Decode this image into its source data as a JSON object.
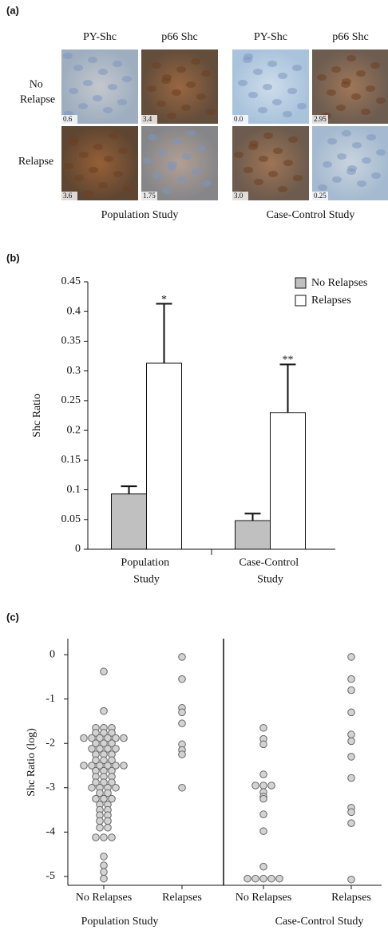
{
  "panel_a": {
    "label": "(a)",
    "row_labels": [
      "No Relapse",
      "Relapse"
    ],
    "studies": [
      {
        "name": "Population Study",
        "columns": [
          "PY-Shc",
          "p66 Shc"
        ],
        "scores": [
          [
            "0.6",
            "3.4"
          ],
          [
            "3.6",
            "1.75"
          ]
        ]
      },
      {
        "name": "Case-Control Study",
        "columns": [
          "PY-Shc",
          "p66 Shc"
        ],
        "scores": [
          [
            "0.0",
            "2.95"
          ],
          [
            "3.0",
            "0.25"
          ]
        ]
      }
    ]
  },
  "chart_data": [
    {
      "type": "bar",
      "label": "(b)",
      "y_label": "Shc Ratio",
      "categories": [
        "Population Study",
        "Case-Control Study"
      ],
      "series": [
        {
          "name": "No Relapses",
          "color": "#c0c0c0",
          "values": [
            0.093,
            0.048
          ],
          "errors": [
            0.013,
            0.012
          ]
        },
        {
          "name": "Relapses",
          "color": "#ffffff",
          "values": [
            0.313,
            0.23
          ],
          "errors": [
            0.1,
            0.081
          ],
          "annotations": [
            "*",
            "**"
          ]
        }
      ],
      "ylim": [
        0,
        0.45
      ],
      "yticks": [
        0,
        0.05,
        0.1,
        0.15,
        0.2,
        0.25,
        0.3,
        0.35,
        0.4,
        0.45
      ],
      "legend": "top-right"
    },
    {
      "type": "dot",
      "label": "(c)",
      "y_label": "Shc Ratio (log)",
      "color": "#d3d3d3",
      "groups": [
        {
          "name": "Population Study",
          "series": [
            {
              "name": "No Relapses",
              "values": [
                -0.38,
                -1.27,
                -1.65,
                -1.65,
                -1.65,
                -1.76,
                -1.76,
                -1.76,
                -1.88,
                -1.88,
                -1.88,
                -1.88,
                -1.88,
                -1.88,
                -2.0,
                -2.0,
                -2.0,
                -2.12,
                -2.12,
                -2.12,
                -2.12,
                -2.25,
                -2.25,
                -2.25,
                -2.38,
                -2.38,
                -2.38,
                -2.5,
                -2.5,
                -2.5,
                -2.5,
                -2.5,
                -2.5,
                -2.62,
                -2.62,
                -2.62,
                -2.75,
                -2.75,
                -2.75,
                -2.88,
                -2.88,
                -2.88,
                -3.0,
                -3.0,
                -3.0,
                -3.0,
                -3.12,
                -3.12,
                -3.25,
                -3.25,
                -3.25,
                -3.38,
                -3.38,
                -3.5,
                -3.5,
                -3.62,
                -3.62,
                -3.75,
                -3.75,
                -3.9,
                -3.9,
                -4.12,
                -4.12,
                -4.12,
                -4.55,
                -4.75,
                -4.9,
                -5.05
              ]
            },
            {
              "name": "Relapses",
              "values": [
                -0.05,
                -0.55,
                -1.2,
                -1.3,
                -1.55,
                -2.02,
                -2.15,
                -2.25,
                -3.0
              ]
            }
          ]
        },
        {
          "name": "Case-Control Study",
          "series": [
            {
              "name": "No Relapses",
              "values": [
                -1.65,
                -1.9,
                -2.02,
                -2.7,
                -2.95,
                -2.95,
                -2.95,
                -3.1,
                -3.2,
                -3.25,
                -3.6,
                -3.98,
                -4.78,
                -5.05,
                -5.05,
                -5.05,
                -5.05,
                -5.05
              ]
            },
            {
              "name": "Relapses",
              "values": [
                -0.05,
                -0.55,
                -0.8,
                -1.3,
                -1.8,
                -1.95,
                -2.3,
                -2.78,
                -3.45,
                -3.55,
                -3.8,
                -5.07
              ]
            }
          ]
        }
      ],
      "ylim": [
        -5.2,
        0.2
      ],
      "yticks": [
        0,
        -1,
        -2,
        -3,
        -4,
        -5
      ]
    }
  ]
}
